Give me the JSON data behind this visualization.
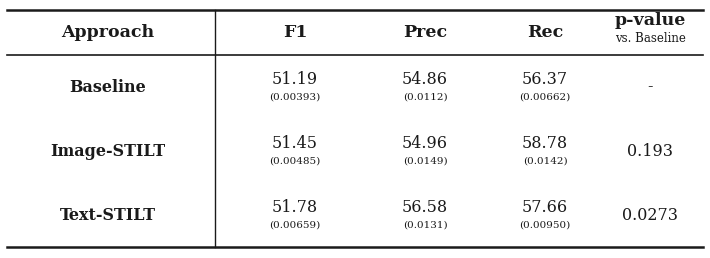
{
  "col_headers_main": [
    "Approach",
    "F1",
    "Prec",
    "Rec"
  ],
  "pvalue_header_line1": "p-value",
  "pvalue_header_line2": "vs. Baseline",
  "rows": [
    {
      "approach": "Baseline",
      "f1": "51.19",
      "f1_std": "(0.00393)",
      "prec": "54.86",
      "prec_std": "(0.0112)",
      "rec": "56.37",
      "rec_std": "(0.00662)",
      "pvalue": "-"
    },
    {
      "approach": "Image-STILT",
      "f1": "51.45",
      "f1_std": "(0.00485)",
      "prec": "54.96",
      "prec_std": "(0.0149)",
      "rec": "58.78",
      "rec_std": "(0.0142)",
      "pvalue": "0.193"
    },
    {
      "approach": "Text-STILT",
      "f1": "51.78",
      "f1_std": "(0.00659)",
      "prec": "56.58",
      "prec_std": "(0.0131)",
      "rec": "57.66",
      "rec_std": "(0.00950)",
      "pvalue": "0.0273"
    }
  ],
  "bg_color": "#ffffff",
  "text_color": "#1a1a1a",
  "std_fontsize": 7.5,
  "main_fontsize": 11.5,
  "header_fontsize": 12.5
}
